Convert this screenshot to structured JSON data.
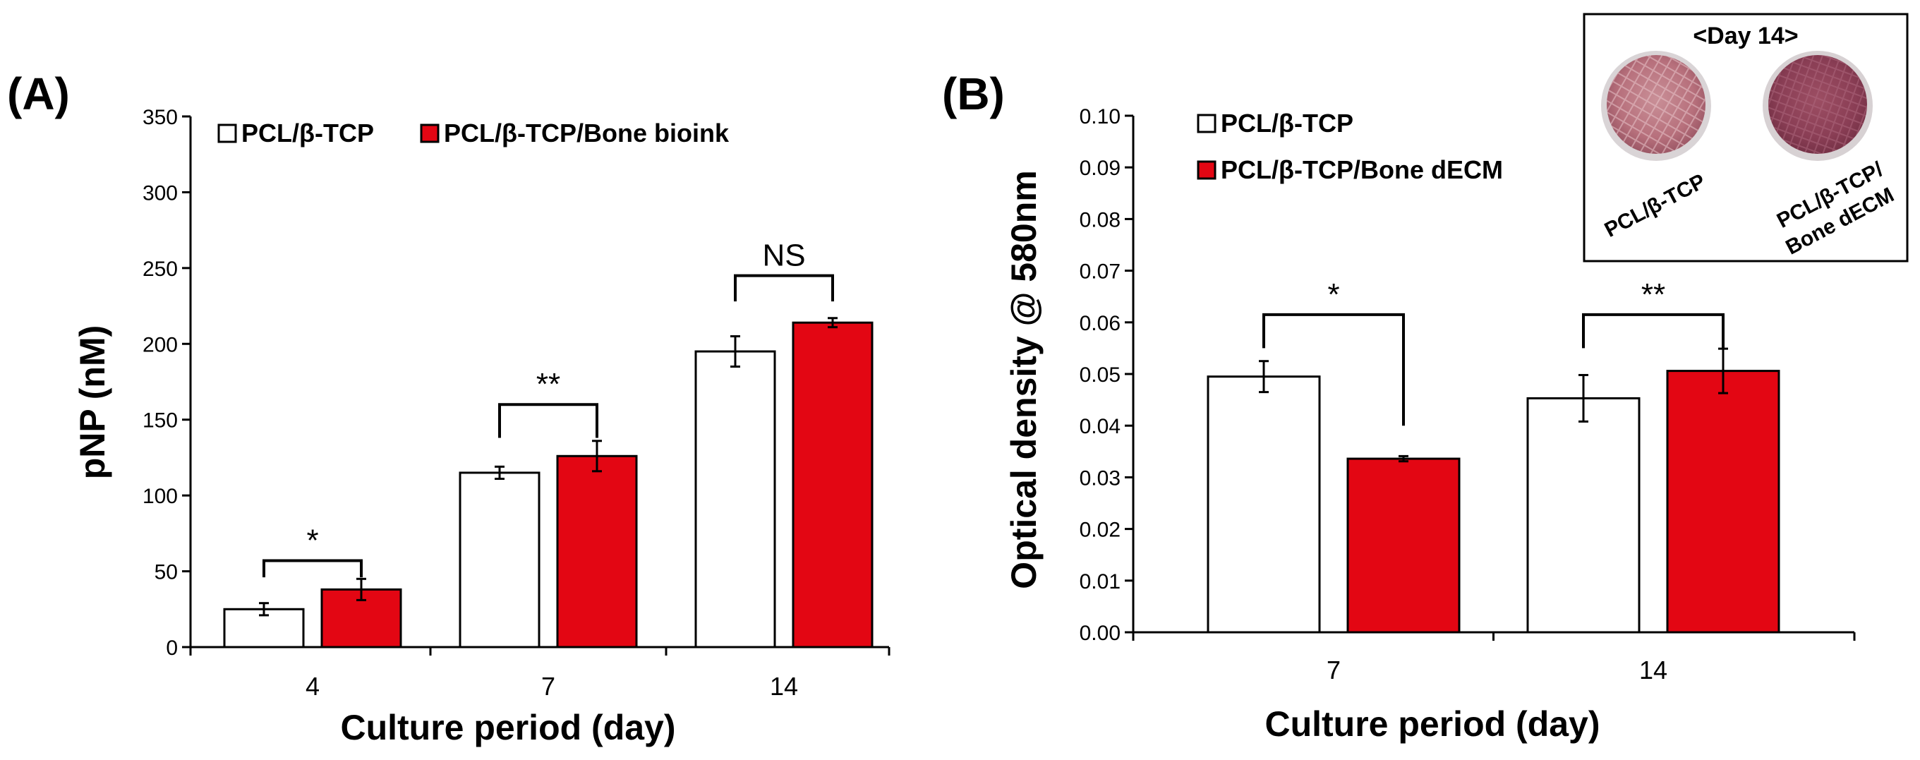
{
  "colors": {
    "series_a": "#ffffff",
    "series_b": "#e30613",
    "edge": "#000000"
  },
  "panels": [
    {
      "label": "(A)",
      "legend": [
        "PCL/β-TCP",
        "PCL/β-TCP/Bone bioink"
      ],
      "chart_data": {
        "type": "bar",
        "xlabel": "Culture period (day)",
        "ylabel": "pNP (nM)",
        "ylim": [
          0,
          350
        ],
        "yticks": [
          "0",
          "50",
          "100",
          "150",
          "200",
          "250",
          "300",
          "350"
        ],
        "categories": [
          "4",
          "7",
          "14"
        ],
        "series": [
          {
            "name": "PCL/β-TCP",
            "values": [
              25,
              115,
              195
            ],
            "errors": [
              4,
              4,
              10
            ]
          },
          {
            "name": "PCL/β-TCP/Bone bioink",
            "values": [
              38,
              126,
              214
            ],
            "errors": [
              7,
              10,
              3
            ]
          }
        ],
        "annotations": [
          "*",
          "**",
          "NS"
        ],
        "legend_position": "top-left"
      }
    },
    {
      "label": "(B)",
      "legend": [
        "PCL/β-TCP",
        "PCL/β-TCP/Bone dECM"
      ],
      "chart_data": {
        "type": "bar",
        "xlabel": "Culture period (day)",
        "ylabel": "Optical density @ 580nm",
        "ylim": [
          0,
          0.1
        ],
        "yticks": [
          "0.00",
          "0.01",
          "0.02",
          "0.03",
          "0.04",
          "0.05",
          "0.06",
          "0.07",
          "0.08",
          "0.09",
          "0.10"
        ],
        "categories": [
          "7",
          "14"
        ],
        "series": [
          {
            "name": "PCL/β-TCP",
            "values": [
              0.0495,
              0.0453
            ],
            "errors": [
              0.003,
              0.0045
            ]
          },
          {
            "name": "PCL/β-TCP/Bone dECM",
            "values": [
              0.0336,
              0.0506
            ],
            "errors": [
              0.0005,
              0.0043
            ]
          }
        ],
        "annotations": [
          "*",
          "**"
        ],
        "legend_position": "top-left"
      },
      "inset": {
        "title": "<Day 14>",
        "labels": [
          "PCL/β-TCP",
          "PCL/β-TCP/",
          "Bone dECM"
        ]
      }
    }
  ]
}
